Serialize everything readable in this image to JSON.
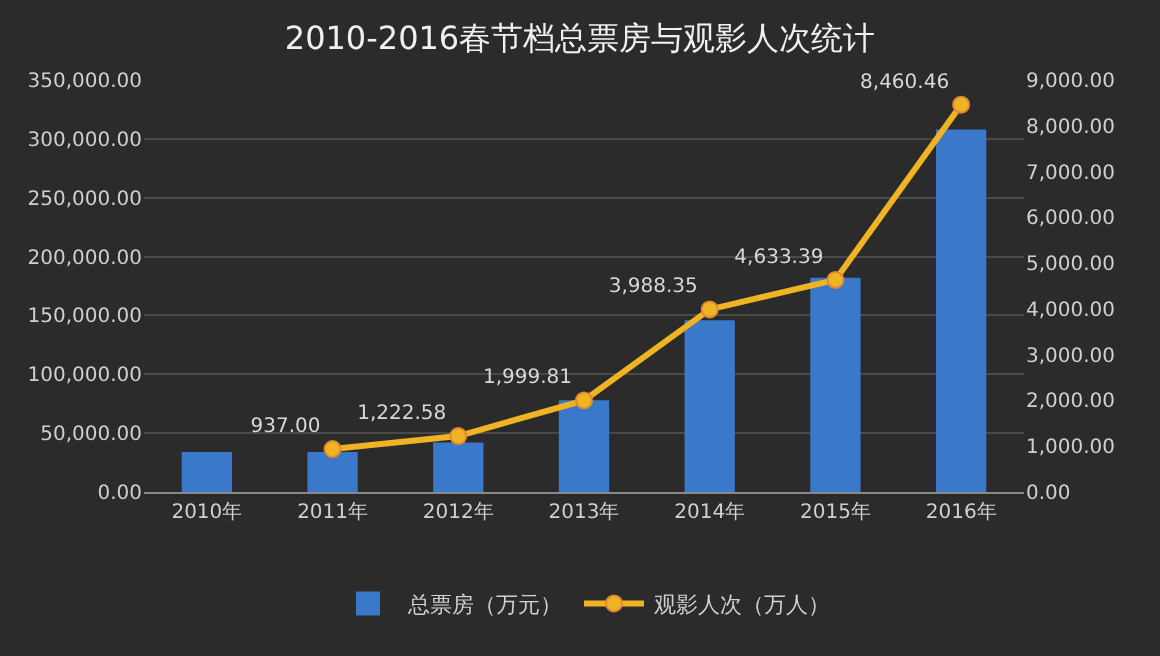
{
  "chart_data": {
    "type": "bar",
    "title": "2010-2016春节档总票房与观影人次统计",
    "categories": [
      "2010年",
      "2011年",
      "2012年",
      "2013年",
      "2014年",
      "2015年",
      "2016年"
    ],
    "series": [
      {
        "name": "总票房（万元）",
        "color": "#3a78c9",
        "values": [
          34000,
          34000,
          42000,
          78000,
          146000,
          182000,
          308000
        ]
      },
      {
        "name": "观影人次（万人）",
        "type": "line",
        "axis": "y2",
        "color": "#f0b323",
        "values": [
          null,
          937.0,
          1222.58,
          1999.81,
          3988.35,
          4633.39,
          8460.46
        ],
        "value_labels": [
          null,
          "937.00",
          "1,222.58",
          "1,999.81",
          "3,988.35",
          "4,633.39",
          "8,460.46"
        ]
      }
    ],
    "ylim": [
      0,
      350000
    ],
    "yticks": [
      {
        "value": 0,
        "label": "0.00"
      },
      {
        "value": 50000,
        "label": "50,000.00"
      },
      {
        "value": 100000,
        "label": "100,000.00"
      },
      {
        "value": 150000,
        "label": "150,000.00"
      },
      {
        "value": 200000,
        "label": "200,000.00"
      },
      {
        "value": 250000,
        "label": "250,000.00"
      },
      {
        "value": 300000,
        "label": "300,000.00"
      },
      {
        "value": 350000,
        "label": "350,000.00"
      }
    ],
    "y2lim": [
      0,
      9000
    ],
    "y2ticks": [
      {
        "value": 0,
        "label": "0.00"
      },
      {
        "value": 1000,
        "label": "1,000.00"
      },
      {
        "value": 2000,
        "label": "2,000.00"
      },
      {
        "value": 3000,
        "label": "3,000.00"
      },
      {
        "value": 4000,
        "label": "4,000.00"
      },
      {
        "value": 5000,
        "label": "5,000.00"
      },
      {
        "value": 6000,
        "label": "6,000.00"
      },
      {
        "value": 7000,
        "label": "7,000.00"
      },
      {
        "value": 8000,
        "label": "8,000.00"
      },
      {
        "value": 9000,
        "label": "9,000.00"
      }
    ],
    "grid": "y",
    "legend": "bottom",
    "marker": "circle"
  }
}
